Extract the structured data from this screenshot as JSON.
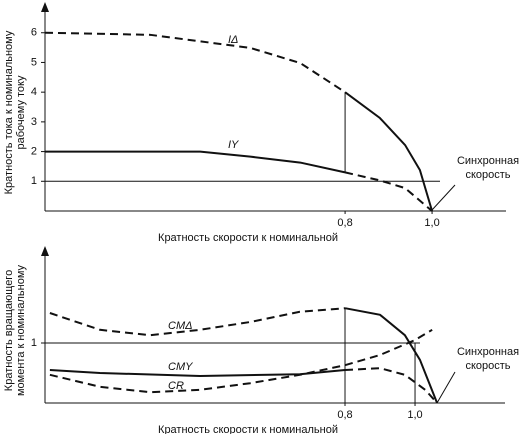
{
  "chart_data": [
    {
      "type": "line",
      "ylabel": [
        "Кратность тока к номинальному",
        "рабочему току"
      ],
      "xlabel": "Кратность скорости к номинальной",
      "xlim": [
        0.11,
        1.17
      ],
      "ylim": [
        0,
        6.9
      ],
      "xticks": [
        {
          "value": 0.8,
          "label": "0,8"
        },
        {
          "value": 1.0,
          "label": "1,0"
        }
      ],
      "yticks": [
        1,
        2,
        3,
        4,
        5,
        6
      ],
      "hline": 1,
      "annotation": [
        "Синхронная",
        "скорость"
      ],
      "series": [
        {
          "name": "IΔ",
          "dashed": true,
          "x": [
            0.11,
            0.352,
            0.582,
            0.697,
            0.8
          ],
          "values": [
            6.0,
            5.93,
            5.49,
            4.98,
            4.0
          ]
        },
        {
          "dashed": false,
          "x": [
            0.8,
            0.88,
            0.938,
            0.972,
            1.0
          ],
          "values": [
            4.0,
            3.13,
            2.22,
            1.38,
            0
          ]
        },
        {
          "name": "IY",
          "dashed": false,
          "x": [
            0.11,
            0.467,
            0.582,
            0.697,
            0.8
          ],
          "values": [
            2.0,
            2.0,
            1.83,
            1.63,
            1.3
          ]
        },
        {
          "dashed": true,
          "x": [
            0.8,
            0.88,
            0.938,
            1.0
          ],
          "values": [
            1.3,
            1.03,
            0.77,
            0
          ]
        }
      ]
    },
    {
      "type": "line",
      "ylabel": [
        "Кратность вращающего",
        "момента к номинальному"
      ],
      "xlabel": "Кратность скорости к номинальной",
      "xlim": [
        -0.057,
        1.257
      ],
      "ylim": [
        0,
        2.55
      ],
      "xticks": [
        {
          "value": 0.8,
          "label": "0,8"
        },
        {
          "value": 1.0,
          "label": "1,0"
        }
      ],
      "yticks": [
        1
      ],
      "hline": 1,
      "annotation": [
        "Синхронная",
        "скорость"
      ],
      "series": [
        {
          "name": "CMΔ",
          "dashed": true,
          "x": [
            -0.043,
            0.1,
            0.243,
            0.386,
            0.529,
            0.671,
            0.8
          ],
          "values": [
            1.5,
            1.22,
            1.13,
            1.22,
            1.35,
            1.52,
            1.58
          ]
        },
        {
          "dashed": false,
          "x": [
            0.8,
            0.9,
            0.971,
            1.014,
            1.063
          ],
          "values": [
            1.58,
            1.47,
            1.13,
            0.72,
            0
          ]
        },
        {
          "name": "CMY",
          "dashed": false,
          "x": [
            -0.043,
            0.1,
            0.386,
            0.671,
            0.8
          ],
          "values": [
            0.55,
            0.5,
            0.45,
            0.48,
            0.55
          ]
        },
        {
          "dashed": true,
          "x": [
            0.8,
            0.9,
            0.971,
            1.029,
            1.063
          ],
          "values": [
            0.55,
            0.58,
            0.47,
            0.22,
            0
          ]
        },
        {
          "name": "CR",
          "dashed": true,
          "x": [
            -0.043,
            0.1,
            0.243,
            0.386,
            0.529,
            0.671,
            0.8,
            0.9,
            1.0,
            1.049
          ],
          "values": [
            0.47,
            0.27,
            0.18,
            0.22,
            0.33,
            0.47,
            0.63,
            0.8,
            1.05,
            1.22
          ]
        }
      ]
    }
  ]
}
